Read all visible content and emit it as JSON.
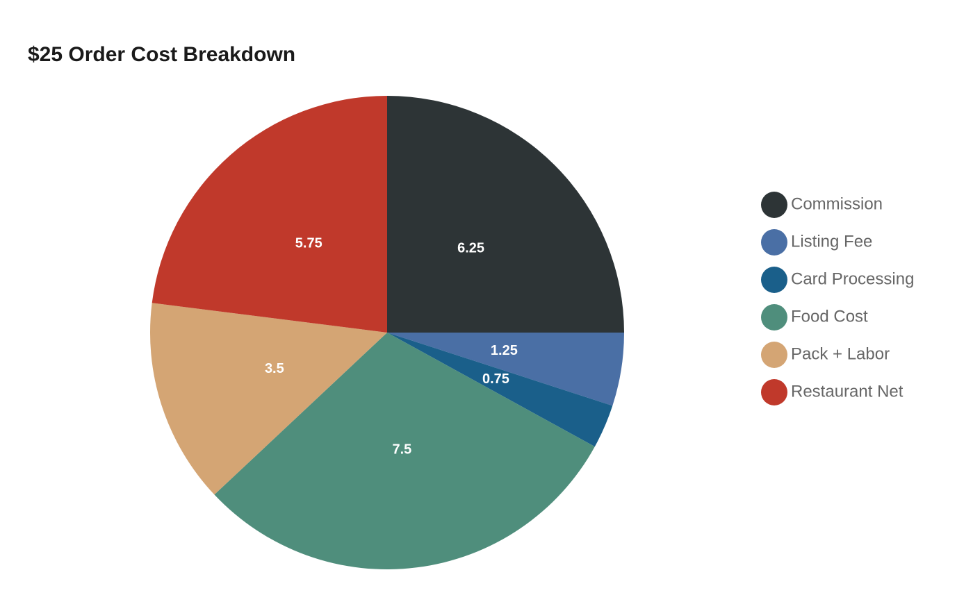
{
  "chart_data": {
    "type": "pie",
    "title": "$25 Order Cost Breakdown",
    "categories": [
      "Commission",
      "Listing Fee",
      "Card Processing",
      "Food Cost",
      "Pack + Labor",
      "Restaurant Net"
    ],
    "values": [
      6.25,
      1.25,
      0.75,
      7.5,
      3.5,
      5.75
    ],
    "colors": [
      "#2d3436",
      "#4a6fa5",
      "#1a5f8a",
      "#4f8e7c",
      "#d4a574",
      "#c0392b"
    ],
    "legend": "right"
  }
}
